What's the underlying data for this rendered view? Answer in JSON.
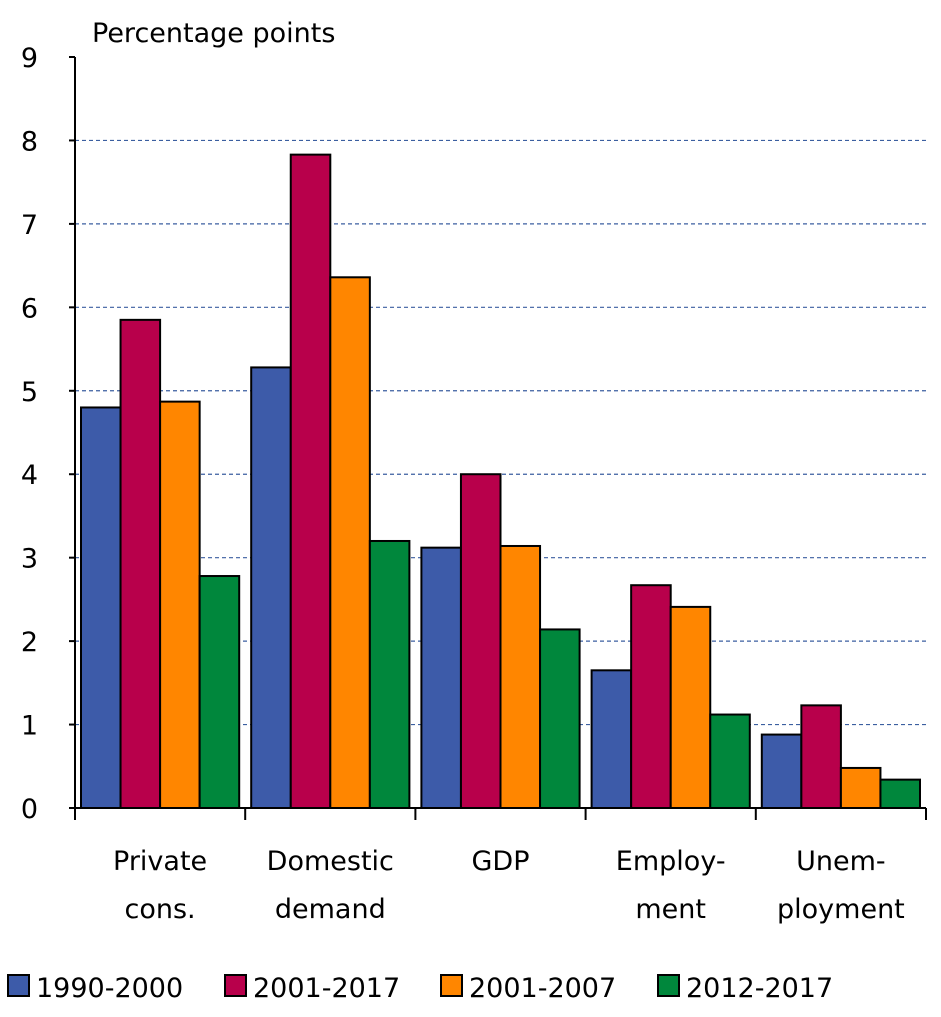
{
  "chart_data": {
    "type": "bar",
    "title": "",
    "ylabel": "Percentage points",
    "xlabel": "",
    "ylim": [
      0,
      9
    ],
    "yticks": [
      0,
      1,
      2,
      3,
      4,
      5,
      6,
      7,
      8,
      9
    ],
    "grid": "horizontal-dashed",
    "legend_position": "bottom",
    "categories": [
      [
        "Private",
        "cons."
      ],
      [
        "Domestic",
        "demand"
      ],
      [
        "GDP"
      ],
      [
        "Employ-",
        "ment"
      ],
      [
        "Unem-",
        "ployment"
      ]
    ],
    "series": [
      {
        "name": "1990-2000",
        "color": "#3d5ba9",
        "values": [
          4.8,
          5.28,
          3.12,
          1.65,
          0.88
        ]
      },
      {
        "name": "2001-2017",
        "color": "#b8004b",
        "values": [
          5.85,
          7.83,
          4.0,
          2.67,
          1.23
        ]
      },
      {
        "name": "2001-2007",
        "color": "#ff8600",
        "values": [
          4.87,
          6.36,
          3.14,
          2.41,
          0.48
        ]
      },
      {
        "name": "2012-2017",
        "color": "#00873c",
        "values": [
          2.78,
          3.2,
          2.14,
          1.12,
          0.34
        ]
      }
    ]
  }
}
